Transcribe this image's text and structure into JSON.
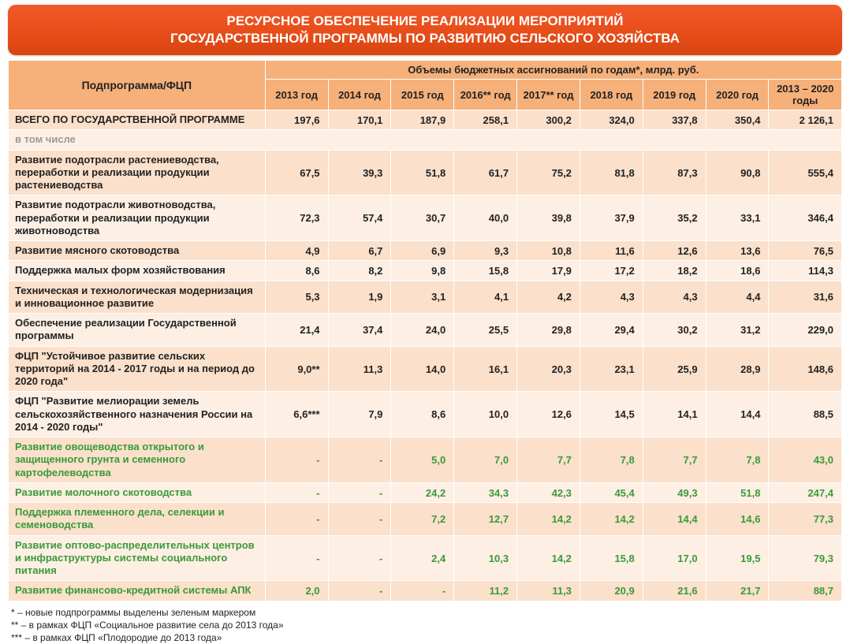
{
  "title_line1": "РЕСУРСНОЕ ОБЕСПЕЧЕНИЕ РЕАЛИЗАЦИИ МЕРОПРИЯТИЙ",
  "title_line2": "ГОСУДАРСТВЕННОЙ ПРОГРАММЫ ПО РАЗВИТИЮ СЕЛЬСКОГО ХОЗЯЙСТВА",
  "header": {
    "row_label": "Подпрограмма/ФЦП",
    "super": "Объемы бюджетных ассигнований по годам*, млрд. руб.",
    "cols": [
      "2013 год",
      "2014 год",
      "2015 год",
      "2016** год",
      "2017** год",
      "2018 год",
      "2019 год",
      "2020 год",
      "2013 – 2020 годы"
    ]
  },
  "rows": [
    {
      "label": "ВСЕГО ПО ГОСУДАРСТВЕННОЙ ПРОГРАММЕ",
      "vals": [
        "197,6",
        "170,1",
        "187,9",
        "258,1",
        "300,2",
        "324,0",
        "337,8",
        "350,4",
        "2 126,1"
      ],
      "stripe": "even"
    },
    {
      "label": "в том числе",
      "section": true
    },
    {
      "label": "Развитие подотрасли растениеводства, переработки и реализации продукции растениеводства",
      "vals": [
        "67,5",
        "39,3",
        "51,8",
        "61,7",
        "75,2",
        "81,8",
        "87,3",
        "90,8",
        "555,4"
      ],
      "stripe": "even"
    },
    {
      "label": "Развитие подотрасли животноводства, переработки и реализации продукции животноводства",
      "vals": [
        "72,3",
        "57,4",
        "30,7",
        "40,0",
        "39,8",
        "37,9",
        "35,2",
        "33,1",
        "346,4"
      ],
      "stripe": "odd"
    },
    {
      "label": "Развитие мясного скотоводства",
      "vals": [
        "4,9",
        "6,7",
        "6,9",
        "9,3",
        "10,8",
        "11,6",
        "12,6",
        "13,6",
        "76,5"
      ],
      "stripe": "even"
    },
    {
      "label": "Поддержка малых форм хозяйствования",
      "vals": [
        "8,6",
        "8,2",
        "9,8",
        "15,8",
        "17,9",
        "17,2",
        "18,2",
        "18,6",
        "114,3"
      ],
      "stripe": "odd"
    },
    {
      "label": "Техническая и технологическая модернизация и инновационное развитие",
      "vals": [
        "5,3",
        "1,9",
        "3,1",
        "4,1",
        "4,2",
        "4,3",
        "4,3",
        "4,4",
        "31,6"
      ],
      "stripe": "even"
    },
    {
      "label": "Обеспечение реализации Государственной программы",
      "vals": [
        "21,4",
        "37,4",
        "24,0",
        "25,5",
        "29,8",
        "29,4",
        "30,2",
        "31,2",
        "229,0"
      ],
      "stripe": "odd"
    },
    {
      "label": "ФЦП \"Устойчивое развитие сельских территорий на 2014 - 2017 годы и на период до 2020 года\"",
      "vals": [
        "9,0**",
        "11,3",
        "14,0",
        "16,1",
        "20,3",
        "23,1",
        "25,9",
        "28,9",
        "148,6"
      ],
      "stripe": "even"
    },
    {
      "label": "ФЦП \"Развитие мелиорации земель сельскохозяйственного назначения России на 2014 - 2020 годы\"",
      "vals": [
        "6,6***",
        "7,9",
        "8,6",
        "10,0",
        "12,6",
        "14,5",
        "14,1",
        "14,4",
        "88,5"
      ],
      "stripe": "odd"
    },
    {
      "label": "Развитие овощеводства открытого и защищенного грунта и семенного картофелеводства",
      "vals": [
        "-",
        "-",
        "5,0",
        "7,0",
        "7,7",
        "7,8",
        "7,7",
        "7,8",
        "43,0"
      ],
      "green": true,
      "stripe": "even"
    },
    {
      "label": "Развитие молочного скотоводства",
      "vals": [
        "-",
        "-",
        "24,2",
        "34,3",
        "42,3",
        "45,4",
        "49,3",
        "51,8",
        "247,4"
      ],
      "green": true,
      "stripe": "odd"
    },
    {
      "label": "Поддержка племенного дела, селекции и семеноводства",
      "vals": [
        "-",
        "-",
        "7,2",
        "12,7",
        "14,2",
        "14,2",
        "14,4",
        "14,6",
        "77,3"
      ],
      "green": true,
      "stripe": "even"
    },
    {
      "label": "Развитие оптово-распределительных центров и инфраструктуры системы социального питания",
      "vals": [
        "-",
        "-",
        "2,4",
        "10,3",
        "14,2",
        "15,8",
        "17,0",
        "19,5",
        "79,3"
      ],
      "green": true,
      "stripe": "odd"
    },
    {
      "label": "Развитие финансово-кредитной системы АПК",
      "vals": [
        "2,0",
        "-",
        "-",
        "11,2",
        "11,3",
        "20,9",
        "21,6",
        "21,7",
        "88,7"
      ],
      "green": true,
      "stripe": "even"
    }
  ],
  "footnotes": [
    "* – новые подпрограммы выделены зеленым маркером",
    "** – в рамках ФЦП «Социальное развитие села до 2013 года»",
    "*** – в рамках ФЦП «Плодородие до 2013 года»"
  ],
  "colors": {
    "title_grad_top": "#f05a28",
    "title_grad_bot": "#d94410",
    "header_bg": "#f6b07a",
    "row_even": "#fbe0cb",
    "row_odd": "#fdefe4",
    "green": "#3a9a3a"
  }
}
